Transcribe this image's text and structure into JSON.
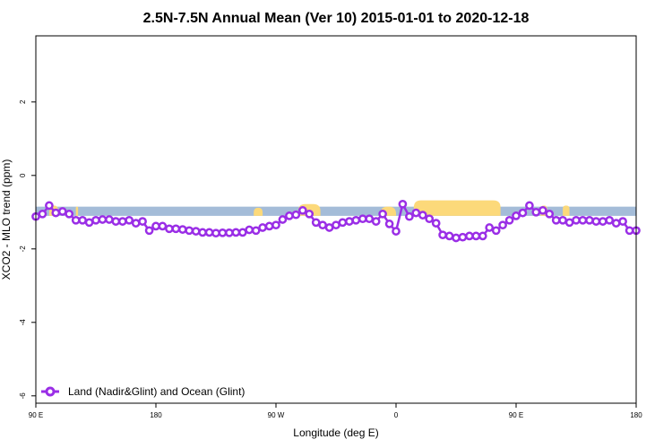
{
  "chart_data": {
    "type": "line",
    "title": "2.5N-7.5N Annual Mean (Ver 10)   2015-01-01 to 2020-12-18",
    "xlabel": "Longitude (deg E)",
    "ylabel": "XCO2 - MLO trend (ppm)",
    "xlim": [
      -90,
      180
    ],
    "ylim": [
      -6.2,
      3.8
    ],
    "x_ticks": [
      {
        "value": -90,
        "label": "90 E"
      },
      {
        "value": -36,
        "label": "180"
      },
      {
        "value": 18,
        "label": "90 W"
      },
      {
        "value": 72,
        "label": "0"
      },
      {
        "value": 126,
        "label": "90 E"
      },
      {
        "value": 180,
        "label": "180"
      }
    ],
    "y_ticks": [
      {
        "value": -6,
        "label": "-6"
      },
      {
        "value": -4,
        "label": "-4"
      },
      {
        "value": -2,
        "label": "-2"
      },
      {
        "value": 0,
        "label": "0"
      },
      {
        "value": 2,
        "label": "2"
      }
    ],
    "grid": false,
    "legend_position": "bottom-left",
    "surface_band": {
      "y_bottom": -1.1,
      "y_top": -0.85,
      "ocean_color": "#a4bcd8",
      "land_color": "#fcd97a",
      "land_bumps": [
        {
          "x0": -84,
          "x1": -80,
          "top": -0.82
        },
        {
          "x0": -72,
          "x1": -71,
          "top": -0.85
        },
        {
          "x0": 8,
          "x1": 12,
          "top": -0.88
        },
        {
          "x0": 28,
          "x1": 38,
          "top": -0.78
        },
        {
          "x0": 65,
          "x1": 72,
          "top": -0.85
        },
        {
          "x0": 80,
          "x1": 119,
          "top": -0.68
        },
        {
          "x0": 137,
          "x1": 140,
          "top": -0.82
        },
        {
          "x0": 147,
          "x1": 150,
          "top": -0.82
        }
      ]
    },
    "series": [
      {
        "name": "Land (Nadir&Glint) and Ocean (Glint)",
        "color": "#9a2ee6",
        "x": [
          -90,
          -87,
          -84,
          -81,
          -78,
          -75,
          -72,
          -69,
          -66,
          -63,
          -60,
          -57,
          -54,
          -51,
          -48,
          -45,
          -42,
          -39,
          -36,
          -33,
          -30,
          -27,
          -24,
          -21,
          -18,
          -15,
          -12,
          -9,
          -6,
          -3,
          0,
          3,
          6,
          9,
          12,
          15,
          18,
          21,
          24,
          27,
          30,
          33,
          36,
          39,
          42,
          45,
          48,
          51,
          54,
          57,
          60,
          63,
          66,
          69,
          72,
          75,
          78,
          81,
          84,
          87,
          90,
          93,
          96,
          99,
          102,
          105,
          108,
          111,
          114,
          117,
          120,
          123,
          126,
          129,
          132,
          135,
          138,
          141,
          144,
          147,
          150,
          153,
          156,
          159,
          162,
          165,
          168,
          171,
          174,
          177,
          180
        ],
        "y": [
          -1.12,
          -1.05,
          -0.82,
          -1.02,
          -0.98,
          -1.05,
          -1.22,
          -1.22,
          -1.28,
          -1.22,
          -1.2,
          -1.2,
          -1.25,
          -1.25,
          -1.22,
          -1.3,
          -1.25,
          -1.5,
          -1.38,
          -1.38,
          -1.45,
          -1.45,
          -1.47,
          -1.5,
          -1.52,
          -1.55,
          -1.55,
          -1.57,
          -1.56,
          -1.56,
          -1.55,
          -1.55,
          -1.48,
          -1.5,
          -1.42,
          -1.38,
          -1.35,
          -1.2,
          -1.1,
          -1.07,
          -0.95,
          -1.05,
          -1.28,
          -1.35,
          -1.42,
          -1.35,
          -1.28,
          -1.25,
          -1.22,
          -1.18,
          -1.18,
          -1.25,
          -1.05,
          -1.32,
          -1.52,
          -0.78,
          -1.12,
          -1.02,
          -1.08,
          -1.18,
          -1.3,
          -1.62,
          -1.65,
          -1.7,
          -1.68,
          -1.65,
          -1.65,
          -1.65,
          -1.42,
          -1.5,
          -1.35,
          -1.22,
          -1.1,
          -1.02,
          -0.82,
          -1.0,
          -0.95,
          -1.05,
          -1.22,
          -1.22,
          -1.28,
          -1.22,
          -1.22,
          -1.22,
          -1.25,
          -1.25,
          -1.22,
          -1.3,
          -1.25,
          -1.5,
          -1.5
        ]
      }
    ]
  }
}
